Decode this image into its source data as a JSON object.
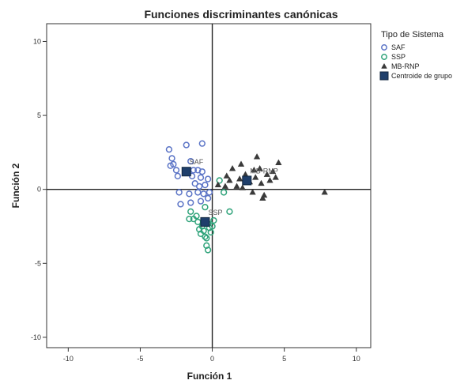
{
  "chart_data": {
    "type": "scatter",
    "title": "Funciones discriminantes canónicas",
    "xlabel": "Función 1",
    "ylabel": "Función 2",
    "xlim": [
      -11.5,
      11
    ],
    "ylim": [
      -10.7,
      11.2
    ],
    "xticks": [
      -10,
      -5,
      0,
      5,
      10
    ],
    "yticks": [
      -10,
      -5,
      0,
      5,
      10
    ],
    "reference_lines": {
      "x": 0,
      "y": 0
    },
    "legend": {
      "title": "Tipo de Sistema",
      "placement": "right",
      "entries": [
        "SAF",
        "SSP",
        "MB-RNP",
        "Centroide de grupo"
      ]
    },
    "colors": {
      "SAF": "#5b74c6",
      "SSP": "#2fa37a",
      "MB-RNP": "#3a3a3a",
      "Centroid": "#1f3f6b"
    },
    "series": [
      {
        "name": "SAF",
        "marker": "circle",
        "points": [
          [
            -3.0,
            2.7
          ],
          [
            -2.8,
            2.1
          ],
          [
            -2.7,
            1.7
          ],
          [
            -2.9,
            1.6
          ],
          [
            -2.5,
            1.3
          ],
          [
            -2.4,
            0.9
          ],
          [
            -1.8,
            3.0
          ],
          [
            -0.7,
            3.1
          ],
          [
            -1.5,
            1.9
          ],
          [
            -1.3,
            1.3
          ],
          [
            -1.0,
            1.3
          ],
          [
            -0.7,
            1.2
          ],
          [
            -1.4,
            0.9
          ],
          [
            -0.8,
            0.8
          ],
          [
            -0.3,
            0.7
          ],
          [
            -1.2,
            0.4
          ],
          [
            -0.9,
            0.2
          ],
          [
            -0.5,
            0.3
          ],
          [
            -2.3,
            -0.2
          ],
          [
            -1.6,
            -0.3
          ],
          [
            -1.0,
            -0.2
          ],
          [
            -0.6,
            -0.3
          ],
          [
            -0.2,
            -0.2
          ],
          [
            -2.2,
            -1.0
          ],
          [
            -1.5,
            -0.9
          ],
          [
            -0.8,
            -0.8
          ],
          [
            -0.3,
            -0.6
          ]
        ]
      },
      {
        "name": "SSP",
        "marker": "circle",
        "points": [
          [
            -1.5,
            -1.5
          ],
          [
            -1.3,
            -2.0
          ],
          [
            -1.1,
            -1.8
          ],
          [
            -1.0,
            -2.2
          ],
          [
            -0.9,
            -2.7
          ],
          [
            -0.8,
            -3.0
          ],
          [
            -0.7,
            -2.5
          ],
          [
            -0.6,
            -2.8
          ],
          [
            -0.5,
            -3.2
          ],
          [
            -0.4,
            -3.3
          ],
          [
            -0.3,
            -2.3
          ],
          [
            -0.2,
            -2.6
          ],
          [
            -0.1,
            -2.9
          ],
          [
            0.0,
            -2.5
          ],
          [
            0.1,
            -2.1
          ],
          [
            -0.3,
            -4.1
          ],
          [
            -0.4,
            -3.8
          ],
          [
            -1.6,
            -2.0
          ],
          [
            -0.5,
            -1.2
          ],
          [
            0.8,
            -0.2
          ],
          [
            1.2,
            -1.5
          ],
          [
            0.5,
            0.6
          ]
        ]
      },
      {
        "name": "MB-RNP",
        "marker": "triangle",
        "points": [
          [
            0.4,
            0.3
          ],
          [
            0.9,
            0.2
          ],
          [
            1.2,
            0.6
          ],
          [
            1.4,
            1.4
          ],
          [
            1.7,
            0.2
          ],
          [
            1.9,
            0.7
          ],
          [
            2.1,
            0.1
          ],
          [
            2.3,
            1.0
          ],
          [
            2.6,
            0.5
          ],
          [
            2.8,
            -0.2
          ],
          [
            2.9,
            1.3
          ],
          [
            3.0,
            0.8
          ],
          [
            3.1,
            2.2
          ],
          [
            3.3,
            1.4
          ],
          [
            3.4,
            0.4
          ],
          [
            3.5,
            -0.6
          ],
          [
            3.6,
            -0.4
          ],
          [
            3.8,
            1.0
          ],
          [
            4.0,
            0.6
          ],
          [
            4.2,
            1.2
          ],
          [
            4.4,
            0.8
          ],
          [
            4.6,
            1.8
          ],
          [
            7.8,
            -0.2
          ],
          [
            1.0,
            0.9
          ],
          [
            2.0,
            1.7
          ]
        ]
      }
    ],
    "centroids": [
      {
        "name": "SAF",
        "x": -1.8,
        "y": 1.2
      },
      {
        "name": "SSP",
        "x": -0.5,
        "y": -2.2
      },
      {
        "name": "MB-RNP",
        "x": 2.4,
        "y": 0.6
      }
    ]
  }
}
